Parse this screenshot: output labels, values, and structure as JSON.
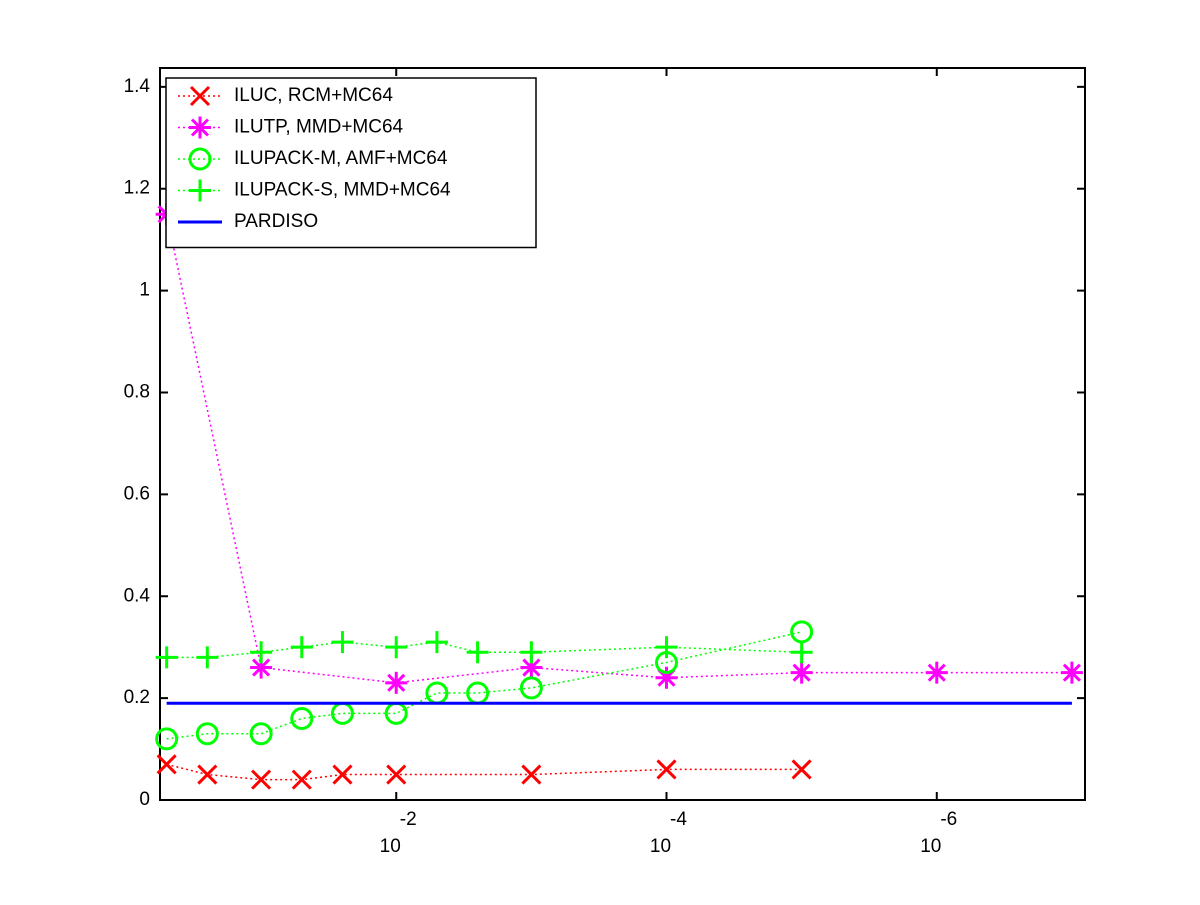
{
  "chart_data": {
    "type": "line",
    "xscale": "log",
    "xreversed": true,
    "xlim": [
      0.56,
      8e-08
    ],
    "ylim": [
      0,
      1.437
    ],
    "xticks": [
      {
        "value": 0.01,
        "label": "10",
        "exponent": "-2"
      },
      {
        "value": 0.0001,
        "label": "10",
        "exponent": "-4"
      },
      {
        "value": 1e-06,
        "label": "10",
        "exponent": "-6"
      }
    ],
    "yticks": [
      0,
      0.2,
      0.4,
      0.6,
      0.8,
      1,
      1.2,
      1.4
    ],
    "legend": "upper left",
    "series": [
      {
        "name": "ILUC, RCM+MC64",
        "color": "#ff0000",
        "marker": "x",
        "linestyle": "dotted",
        "x": [
          0.5,
          0.25,
          0.1,
          0.05,
          0.025,
          0.01,
          0.001,
          0.0001,
          1e-05
        ],
        "values": [
          0.07,
          0.05,
          0.04,
          0.04,
          0.05,
          0.05,
          0.05,
          0.06,
          0.06
        ]
      },
      {
        "name": "ILUTP, MMD+MC64",
        "color": "#ff00ff",
        "marker": "star",
        "linestyle": "dotted",
        "x": [
          0.5,
          0.1,
          0.01,
          0.001,
          0.0001,
          1e-05,
          1e-06,
          1e-07
        ],
        "values": [
          1.15,
          0.26,
          0.23,
          0.26,
          0.24,
          0.25,
          0.25,
          0.25
        ]
      },
      {
        "name": "ILUPACK-M, AMF+MC64",
        "color": "#00ff00",
        "marker": "circle",
        "linestyle": "dotted",
        "x": [
          0.5,
          0.25,
          0.1,
          0.05,
          0.025,
          0.01,
          0.005,
          0.0025,
          0.001,
          0.0001,
          1e-05
        ],
        "values": [
          0.12,
          0.13,
          0.13,
          0.16,
          0.17,
          0.17,
          0.21,
          0.21,
          0.22,
          0.27,
          0.33
        ]
      },
      {
        "name": "ILUPACK-S, MMD+MC64",
        "color": "#00ff00",
        "marker": "plus",
        "linestyle": "dotted",
        "x": [
          0.5,
          0.25,
          0.1,
          0.05,
          0.025,
          0.01,
          0.005,
          0.0025,
          0.001,
          0.0001,
          1e-05
        ],
        "values": [
          0.28,
          0.28,
          0.29,
          0.3,
          0.31,
          0.3,
          0.31,
          0.29,
          0.29,
          0.3,
          0.29
        ]
      },
      {
        "name": "PARDISO",
        "color": "#0000ff",
        "marker": "none",
        "linestyle": "solid",
        "x": [
          0.5,
          1e-07
        ],
        "values": [
          0.19,
          0.19
        ]
      }
    ]
  }
}
